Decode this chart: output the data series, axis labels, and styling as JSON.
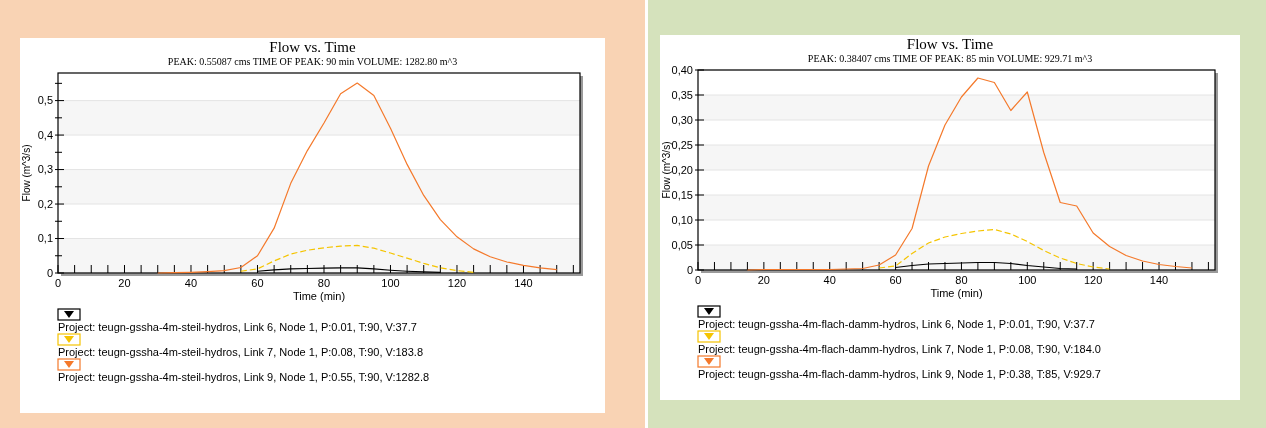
{
  "chart_data": [
    {
      "type": "line",
      "title": "Flow vs. Time",
      "subtitle": "PEAK: 0.55087 cms  TIME OF PEAK: 90 min  VOLUME: 1282.80 m^3",
      "xlabel": "Time (min)",
      "ylabel": "Flow (m^3/s)",
      "series": [
        {
          "name": "Project: teugn-gssha-4m-steil-hydros, Link 6, Node 1, P:0.01, T:90, V:37.7",
          "color": "#000000",
          "line_style": "solid",
          "x": [
            60,
            65,
            70,
            75,
            80,
            85,
            90,
            95,
            100,
            105,
            110,
            115
          ],
          "values": [
            0.005,
            0.009,
            0.012,
            0.013,
            0.014,
            0.015,
            0.015,
            0.012,
            0.008,
            0.005,
            0.003,
            0.002
          ]
        },
        {
          "name": "Project: teugn-gssha-4m-steil-hydros, Link 7, Node 1, P:0.08, T:90, V:183.8",
          "color": "#f5c400",
          "line_style": "dashed",
          "x": [
            55,
            60,
            65,
            70,
            75,
            80,
            85,
            90,
            95,
            100,
            105,
            110,
            115,
            120,
            125
          ],
          "values": [
            0.005,
            0.012,
            0.035,
            0.055,
            0.066,
            0.073,
            0.078,
            0.08,
            0.072,
            0.058,
            0.043,
            0.028,
            0.015,
            0.007,
            0.002
          ]
        },
        {
          "name": "Project: teugn-gssha-4m-steil-hydros, Link 9, Node 1, P:0.55, T:90, V:1282.8",
          "color": "#f4792b",
          "line_style": "solid",
          "x": [
            30,
            35,
            40,
            45,
            50,
            55,
            60,
            65,
            70,
            75,
            80,
            85,
            90,
            95,
            100,
            105,
            110,
            115,
            120,
            125,
            130,
            135,
            140,
            145,
            150
          ],
          "values": [
            0,
            0.001,
            0.002,
            0.004,
            0.007,
            0.016,
            0.05,
            0.13,
            0.26,
            0.355,
            0.435,
            0.52,
            0.551,
            0.515,
            0.42,
            0.315,
            0.225,
            0.155,
            0.105,
            0.07,
            0.047,
            0.032,
            0.022,
            0.015,
            0.01
          ]
        }
      ],
      "xlim": [
        0,
        157
      ],
      "xticks": [
        0,
        {
          "value": 5,
          "label": null
        },
        {
          "value": 10,
          "label": null
        },
        {
          "value": 15,
          "label": null
        },
        20,
        {
          "value": 25,
          "label": null
        },
        {
          "value": 30,
          "label": null
        },
        {
          "value": 35,
          "label": null
        },
        40,
        {
          "value": 45,
          "label": null
        },
        {
          "value": 50,
          "label": null
        },
        {
          "value": 55,
          "label": null
        },
        60,
        {
          "value": 65,
          "label": null
        },
        {
          "value": 70,
          "label": null
        },
        {
          "value": 75,
          "label": null
        },
        80,
        {
          "value": 85,
          "label": null
        },
        {
          "value": 90,
          "label": null
        },
        {
          "value": 95,
          "label": null
        },
        100,
        {
          "value": 105,
          "label": null
        },
        {
          "value": 110,
          "label": null
        },
        {
          "value": 115,
          "label": null
        },
        120,
        {
          "value": 125,
          "label": null
        },
        {
          "value": 130,
          "label": null
        },
        {
          "value": 135,
          "label": null
        },
        140,
        {
          "value": 145,
          "label": null
        },
        {
          "value": 150,
          "label": null
        },
        {
          "value": 155,
          "label": null
        }
      ],
      "ylim": [
        0,
        0.58
      ],
      "yticks": [
        0,
        {
          "value": 0.05,
          "label": null
        },
        {
          "value": 0.1,
          "label": "0,1"
        },
        {
          "value": 0.15,
          "label": null
        },
        {
          "value": 0.2,
          "label": "0,2"
        },
        {
          "value": 0.25,
          "label": null
        },
        {
          "value": 0.3,
          "label": "0,3"
        },
        {
          "value": 0.35,
          "label": null
        },
        {
          "value": 0.4,
          "label": "0,4"
        },
        {
          "value": 0.45,
          "label": null
        },
        {
          "value": 0.5,
          "label": "0,5"
        },
        {
          "value": 0.55,
          "label": null
        }
      ],
      "grid": "y",
      "legend": "bottom",
      "marker": "none"
    },
    {
      "type": "line",
      "title": "Flow vs. Time",
      "subtitle": "PEAK: 0.38407 cms  TIME OF PEAK: 85 min  VOLUME: 929.71 m^3",
      "xlabel": "Time (min)",
      "ylabel": "Flow (m^3/s)",
      "series": [
        {
          "name": "Project: teugn-gssha-4m-flach-damm-hydros, Link 6, Node 1, P:0.01, T:90, V:37.7",
          "color": "#000000",
          "line_style": "solid",
          "x": [
            60,
            65,
            70,
            75,
            80,
            85,
            90,
            95,
            100,
            105,
            110,
            115
          ],
          "values": [
            0.005,
            0.009,
            0.012,
            0.013,
            0.014,
            0.015,
            0.015,
            0.013,
            0.009,
            0.006,
            0.003,
            0.002
          ]
        },
        {
          "name": "Project: teugn-gssha-4m-flach-damm-hydros, Link 7, Node 1, P:0.08, T:90, V:184.0",
          "color": "#f5c400",
          "line_style": "dashed",
          "x": [
            55,
            60,
            65,
            70,
            75,
            80,
            85,
            90,
            95,
            100,
            105,
            110,
            115,
            120,
            125
          ],
          "values": [
            0.004,
            0.008,
            0.033,
            0.054,
            0.066,
            0.073,
            0.078,
            0.081,
            0.072,
            0.057,
            0.039,
            0.024,
            0.013,
            0.006,
            0.002
          ]
        },
        {
          "name": "Project: teugn-gssha-4m-flach-damm-hydros, Link 9, Node 1, P:0.38, T:85, V:929.7",
          "color": "#f4792b",
          "line_style": "solid",
          "x": [
            15,
            20,
            25,
            30,
            35,
            40,
            45,
            50,
            55,
            60,
            65,
            70,
            75,
            80,
            85,
            90,
            95,
            100,
            105,
            110,
            115,
            120,
            125,
            130,
            135,
            140,
            145,
            150
          ],
          "values": [
            0,
            0.001,
            0.001,
            0.001,
            0.001,
            0.001,
            0.002,
            0.003,
            0.01,
            0.03,
            0.083,
            0.208,
            0.29,
            0.346,
            0.384,
            0.375,
            0.319,
            0.356,
            0.235,
            0.135,
            0.128,
            0.074,
            0.047,
            0.029,
            0.018,
            0.011,
            0.007,
            0.004
          ]
        }
      ],
      "xlim": [
        0,
        157
      ],
      "xticks": [
        0,
        {
          "value": 5,
          "label": null
        },
        {
          "value": 10,
          "label": null
        },
        {
          "value": 15,
          "label": null
        },
        20,
        {
          "value": 25,
          "label": null
        },
        {
          "value": 30,
          "label": null
        },
        {
          "value": 35,
          "label": null
        },
        40,
        {
          "value": 45,
          "label": null
        },
        {
          "value": 50,
          "label": null
        },
        {
          "value": 55,
          "label": null
        },
        60,
        {
          "value": 65,
          "label": null
        },
        {
          "value": 70,
          "label": null
        },
        {
          "value": 75,
          "label": null
        },
        80,
        {
          "value": 85,
          "label": null
        },
        {
          "value": 90,
          "label": null
        },
        {
          "value": 95,
          "label": null
        },
        100,
        {
          "value": 105,
          "label": null
        },
        {
          "value": 110,
          "label": null
        },
        {
          "value": 115,
          "label": null
        },
        120,
        {
          "value": 125,
          "label": null
        },
        {
          "value": 130,
          "label": null
        },
        {
          "value": 135,
          "label": null
        },
        140,
        {
          "value": 145,
          "label": null
        },
        {
          "value": 150,
          "label": null
        },
        {
          "value": 155,
          "label": null
        }
      ],
      "ylim": [
        0,
        0.4
      ],
      "yticks": [
        0,
        {
          "value": 0.05,
          "label": "0,05"
        },
        {
          "value": 0.1,
          "label": "0,10"
        },
        {
          "value": 0.15,
          "label": "0,15"
        },
        {
          "value": 0.2,
          "label": "0,20"
        },
        {
          "value": 0.25,
          "label": "0,25"
        },
        {
          "value": 0.3,
          "label": "0,30"
        },
        {
          "value": 0.35,
          "label": "0,35"
        },
        {
          "value": 0.4,
          "label": "0,40"
        }
      ],
      "grid": "y",
      "legend": "bottom",
      "marker": "none"
    }
  ]
}
